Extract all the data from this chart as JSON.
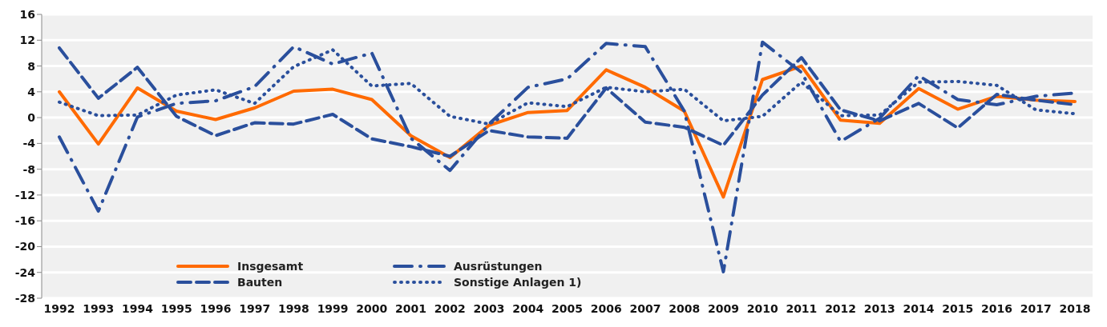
{
  "chart_data": {
    "type": "line",
    "categories": [
      "1992",
      "1993",
      "1994",
      "1995",
      "1996",
      "1997",
      "1998",
      "1999",
      "2000",
      "2001",
      "2002",
      "2003",
      "2004",
      "2005",
      "2006",
      "2007",
      "2008",
      "2009",
      "2010",
      "2011",
      "2012",
      "2013",
      "2014",
      "2015",
      "2016",
      "2017",
      "2018"
    ],
    "series": [
      {
        "name": "Insgesamt",
        "color": "#ff6a00",
        "line_style": "solid",
        "values": [
          4.0,
          -4.1,
          4.6,
          1.0,
          -0.3,
          1.5,
          4.1,
          4.4,
          2.8,
          -2.8,
          -6.2,
          -1.2,
          0.8,
          1.1,
          7.4,
          4.7,
          1.0,
          -12.3,
          5.9,
          8.0,
          -0.4,
          -0.9,
          4.5,
          1.3,
          3.3,
          2.7,
          2.5
        ]
      },
      {
        "name": "Ausrüstungen",
        "color": "#2a4f9c",
        "line_style": "dashdot",
        "values": [
          -3.0,
          -14.5,
          0.1,
          2.2,
          2.6,
          4.8,
          11.0,
          8.3,
          10.0,
          -3.2,
          -8.2,
          -1.0,
          4.7,
          6.0,
          11.5,
          11.0,
          1.0,
          -23.9,
          11.7,
          7.0,
          -3.7,
          -0.1,
          6.5,
          2.8,
          2.0,
          3.3,
          3.8
        ]
      },
      {
        "name": "Bauten",
        "color": "#2a4f9c",
        "line_style": "dashed",
        "values": [
          10.8,
          3.0,
          7.8,
          0.2,
          -2.8,
          -0.8,
          -1.0,
          0.5,
          -3.3,
          -4.5,
          -6.0,
          -2.0,
          -3.0,
          -3.2,
          4.6,
          -0.7,
          -1.5,
          -4.3,
          3.5,
          9.3,
          1.2,
          -0.5,
          2.2,
          -1.6,
          3.6,
          2.7,
          2.0
        ]
      },
      {
        "name": "Sonstige Anlagen 1)",
        "color": "#2a4f9c",
        "line_style": "dotted",
        "values": [
          2.4,
          0.3,
          0.4,
          3.5,
          4.3,
          2.2,
          7.9,
          10.5,
          4.9,
          5.3,
          0.2,
          -1.0,
          2.3,
          1.7,
          4.7,
          4.0,
          4.4,
          -0.5,
          0.2,
          5.5,
          0.3,
          0.4,
          5.5,
          5.6,
          5.0,
          1.2,
          0.6
        ]
      }
    ],
    "ylim": [
      -28,
      16
    ],
    "yticks": [
      -28,
      -24,
      -20,
      -16,
      -12,
      -8,
      -4,
      0,
      4,
      8,
      12,
      16
    ],
    "grid": "y",
    "legend": "bottom",
    "marker": "none"
  }
}
